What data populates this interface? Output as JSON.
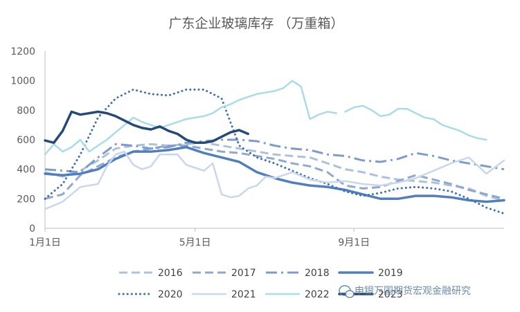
{
  "chart_data": {
    "type": "line",
    "title": "广东企业玻璃库存 （万重箱）",
    "xlabel": "",
    "ylabel": "",
    "ylim": [
      0,
      1200
    ],
    "yticks": [
      "0",
      "200",
      "400",
      "600",
      "800",
      "1000",
      "1200"
    ],
    "xlim": [
      0,
      52
    ],
    "xticks": [
      {
        "label": "1月1日",
        "week": 0
      },
      {
        "label": "5月1日",
        "week": 17
      },
      {
        "label": "9月1日",
        "week": 35
      }
    ],
    "legend_position": "bottom",
    "grid": false,
    "series": [
      {
        "name": "2016",
        "color": "#adc0dc",
        "style": "dash",
        "points": [
          [
            0,
            380
          ],
          [
            2,
            350
          ],
          [
            4,
            390
          ],
          [
            6,
            460
          ],
          [
            8,
            540
          ],
          [
            10,
            560
          ],
          [
            12,
            570
          ],
          [
            14,
            560
          ],
          [
            16,
            570
          ],
          [
            18,
            580
          ],
          [
            20,
            560
          ],
          [
            22,
            540
          ],
          [
            24,
            520
          ],
          [
            26,
            500
          ],
          [
            28,
            490
          ],
          [
            30,
            480
          ],
          [
            32,
            440
          ],
          [
            34,
            400
          ],
          [
            36,
            380
          ],
          [
            38,
            350
          ],
          [
            40,
            330
          ],
          [
            42,
            320
          ],
          [
            44,
            310
          ],
          [
            46,
            290
          ],
          [
            48,
            270
          ],
          [
            50,
            220
          ],
          [
            52,
            190
          ]
        ]
      },
      {
        "name": "2017",
        "color": "#8ea8d0",
        "style": "dash",
        "points": [
          [
            0,
            200
          ],
          [
            2,
            230
          ],
          [
            4,
            360
          ],
          [
            6,
            420
          ],
          [
            8,
            480
          ],
          [
            10,
            520
          ],
          [
            12,
            540
          ],
          [
            14,
            560
          ],
          [
            16,
            560
          ],
          [
            18,
            540
          ],
          [
            20,
            520
          ],
          [
            22,
            510
          ],
          [
            24,
            490
          ],
          [
            26,
            470
          ],
          [
            28,
            440
          ],
          [
            30,
            420
          ],
          [
            32,
            380
          ],
          [
            34,
            290
          ],
          [
            36,
            270
          ],
          [
            38,
            280
          ],
          [
            40,
            320
          ],
          [
            42,
            360
          ],
          [
            44,
            330
          ],
          [
            46,
            300
          ],
          [
            48,
            260
          ],
          [
            50,
            230
          ],
          [
            52,
            200
          ]
        ]
      },
      {
        "name": "2018",
        "color": "#7d9bcb",
        "style": "dashdot",
        "points": [
          [
            0,
            400
          ],
          [
            2,
            390
          ],
          [
            4,
            380
          ],
          [
            6,
            480
          ],
          [
            8,
            570
          ],
          [
            10,
            560
          ],
          [
            12,
            540
          ],
          [
            14,
            550
          ],
          [
            16,
            580
          ],
          [
            18,
            590
          ],
          [
            20,
            600
          ],
          [
            22,
            600
          ],
          [
            24,
            590
          ],
          [
            26,
            560
          ],
          [
            28,
            540
          ],
          [
            30,
            530
          ],
          [
            32,
            500
          ],
          [
            34,
            490
          ],
          [
            36,
            460
          ],
          [
            38,
            450
          ],
          [
            40,
            470
          ],
          [
            42,
            510
          ],
          [
            44,
            490
          ],
          [
            46,
            460
          ],
          [
            48,
            440
          ],
          [
            50,
            420
          ],
          [
            52,
            400
          ]
        ]
      },
      {
        "name": "2019",
        "color": "#4f7fbf",
        "style": "solid-thick",
        "points": [
          [
            0,
            370
          ],
          [
            2,
            360
          ],
          [
            4,
            370
          ],
          [
            6,
            400
          ],
          [
            8,
            470
          ],
          [
            10,
            520
          ],
          [
            12,
            520
          ],
          [
            14,
            530
          ],
          [
            16,
            550
          ],
          [
            18,
            510
          ],
          [
            20,
            480
          ],
          [
            22,
            450
          ],
          [
            24,
            380
          ],
          [
            26,
            340
          ],
          [
            28,
            310
          ],
          [
            30,
            290
          ],
          [
            32,
            280
          ],
          [
            34,
            260
          ],
          [
            36,
            230
          ],
          [
            38,
            200
          ],
          [
            40,
            200
          ],
          [
            42,
            220
          ],
          [
            44,
            220
          ],
          [
            46,
            210
          ],
          [
            48,
            190
          ],
          [
            50,
            180
          ],
          [
            52,
            190
          ]
        ]
      },
      {
        "name": "2020",
        "color": "#3c6fb4",
        "style": "dot",
        "points": [
          [
            0,
            200
          ],
          [
            2,
            300
          ],
          [
            4,
            500
          ],
          [
            6,
            750
          ],
          [
            8,
            880
          ],
          [
            10,
            940
          ],
          [
            12,
            910
          ],
          [
            14,
            900
          ],
          [
            16,
            940
          ],
          [
            18,
            940
          ],
          [
            20,
            880
          ],
          [
            22,
            560
          ],
          [
            24,
            480
          ],
          [
            26,
            440
          ],
          [
            28,
            390
          ],
          [
            30,
            340
          ],
          [
            32,
            300
          ],
          [
            34,
            250
          ],
          [
            36,
            220
          ],
          [
            38,
            240
          ],
          [
            40,
            270
          ],
          [
            42,
            280
          ],
          [
            44,
            270
          ],
          [
            46,
            250
          ],
          [
            48,
            200
          ],
          [
            50,
            140
          ],
          [
            52,
            100
          ]
        ]
      },
      {
        "name": "2021",
        "color": "#c9d7ee",
        "style": "solid",
        "points": [
          [
            0,
            130
          ],
          [
            2,
            180
          ],
          [
            4,
            280
          ],
          [
            6,
            300
          ],
          [
            7,
            420
          ],
          [
            8,
            500
          ],
          [
            9,
            520
          ],
          [
            10,
            430
          ],
          [
            11,
            400
          ],
          [
            12,
            420
          ],
          [
            13,
            500
          ],
          [
            14,
            500
          ],
          [
            15,
            500
          ],
          [
            16,
            430
          ],
          [
            17,
            410
          ],
          [
            18,
            390
          ],
          [
            19,
            440
          ],
          [
            20,
            230
          ],
          [
            21,
            210
          ],
          [
            22,
            220
          ],
          [
            23,
            270
          ],
          [
            24,
            290
          ],
          [
            25,
            350
          ],
          [
            26,
            340
          ],
          [
            28,
            380
          ],
          [
            30,
            330
          ],
          [
            32,
            310
          ],
          [
            34,
            320
          ],
          [
            36,
            300
          ],
          [
            38,
            290
          ],
          [
            40,
            310
          ],
          [
            42,
            340
          ],
          [
            44,
            390
          ],
          [
            46,
            440
          ],
          [
            48,
            480
          ],
          [
            50,
            370
          ],
          [
            52,
            460
          ]
        ]
      },
      {
        "name": "2022",
        "color": "#a8dce6",
        "style": "solid",
        "points": [
          [
            0,
            500
          ],
          [
            1,
            570
          ],
          [
            2,
            520
          ],
          [
            3,
            550
          ],
          [
            4,
            600
          ],
          [
            5,
            520
          ],
          [
            6,
            560
          ],
          [
            7,
            600
          ],
          [
            8,
            650
          ],
          [
            9,
            700
          ],
          [
            10,
            750
          ],
          [
            11,
            720
          ],
          [
            12,
            700
          ],
          [
            13,
            680
          ],
          [
            14,
            700
          ],
          [
            15,
            720
          ],
          [
            16,
            740
          ],
          [
            17,
            750
          ],
          [
            18,
            760
          ],
          [
            19,
            780
          ],
          [
            20,
            820
          ],
          [
            21,
            840
          ],
          [
            22,
            870
          ],
          [
            23,
            890
          ],
          [
            24,
            910
          ],
          [
            25,
            920
          ],
          [
            26,
            930
          ],
          [
            27,
            950
          ],
          [
            28,
            1000
          ],
          [
            29,
            960
          ],
          [
            30,
            740
          ],
          [
            31,
            770
          ],
          [
            32,
            790
          ],
          [
            33,
            780
          ],
          null,
          [
            34,
            790
          ],
          [
            35,
            820
          ],
          [
            36,
            830
          ],
          [
            37,
            800
          ],
          [
            38,
            760
          ],
          [
            39,
            770
          ],
          [
            40,
            810
          ],
          [
            41,
            810
          ],
          [
            42,
            780
          ],
          [
            43,
            750
          ],
          [
            44,
            740
          ],
          [
            45,
            700
          ],
          [
            46,
            680
          ],
          [
            47,
            660
          ],
          [
            48,
            630
          ],
          [
            49,
            610
          ],
          [
            50,
            600
          ]
        ]
      },
      {
        "name": "2023",
        "color": "#244a78",
        "style": "solid-thick",
        "points": [
          [
            0,
            595
          ],
          [
            1,
            580
          ],
          [
            2,
            660
          ],
          [
            3,
            790
          ],
          [
            4,
            770
          ],
          [
            5,
            780
          ],
          [
            6,
            790
          ],
          [
            7,
            780
          ],
          [
            8,
            760
          ],
          [
            9,
            730
          ],
          [
            10,
            700
          ],
          [
            11,
            680
          ],
          [
            12,
            670
          ],
          [
            13,
            690
          ],
          [
            14,
            660
          ],
          [
            15,
            640
          ],
          [
            16,
            600
          ],
          [
            17,
            580
          ],
          [
            18,
            580
          ],
          [
            19,
            590
          ],
          [
            20,
            620
          ],
          [
            21,
            650
          ],
          [
            22,
            665
          ],
          [
            23,
            640
          ]
        ]
      }
    ]
  },
  "watermark": {
    "text": "申银万国期货宏观金融研究",
    "icon": "wechat-icon"
  }
}
